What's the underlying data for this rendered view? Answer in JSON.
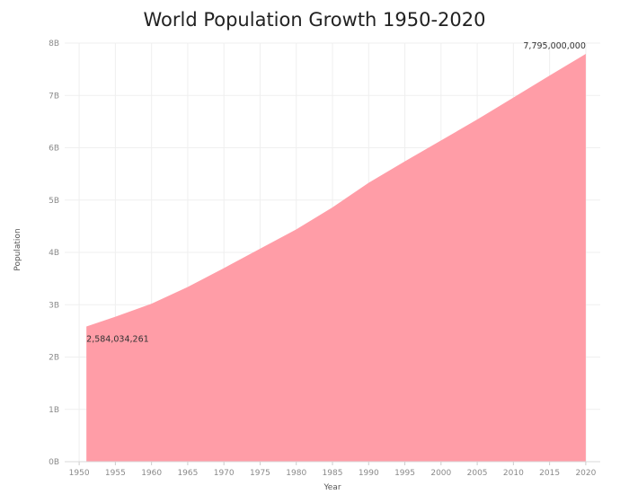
{
  "chart_data": {
    "type": "area",
    "title": "World Population Growth 1950-2020",
    "xlabel": "Year",
    "ylabel": "Population",
    "x_ticks": [
      "1950",
      "1955",
      "1960",
      "1965",
      "1970",
      "1975",
      "1980",
      "1985",
      "1990",
      "1995",
      "2000",
      "2005",
      "2010",
      "2015",
      "2020"
    ],
    "y_ticks": [
      "0B",
      "1B",
      "2B",
      "3B",
      "4B",
      "5B",
      "6B",
      "7B",
      "8B"
    ],
    "xlim": [
      1948,
      2022
    ],
    "ylim": [
      0,
      8000000000
    ],
    "grid": true,
    "color": "#FF9DA7",
    "x": [
      1951,
      1955,
      1960,
      1965,
      1970,
      1975,
      1980,
      1985,
      1990,
      1995,
      2000,
      2005,
      2010,
      2015,
      2020
    ],
    "y": [
      2584034261,
      2770000000,
      3020000000,
      3340000000,
      3700000000,
      4070000000,
      4440000000,
      4860000000,
      5330000000,
      5740000000,
      6140000000,
      6540000000,
      6960000000,
      7380000000,
      7795000000
    ],
    "annotations": [
      {
        "x": 1951,
        "y": 2584034261,
        "text": "2,584,034,261",
        "position": "below"
      },
      {
        "x": 2020,
        "y": 7795000000,
        "text": "7,795,000,000",
        "position": "above-left"
      }
    ]
  }
}
